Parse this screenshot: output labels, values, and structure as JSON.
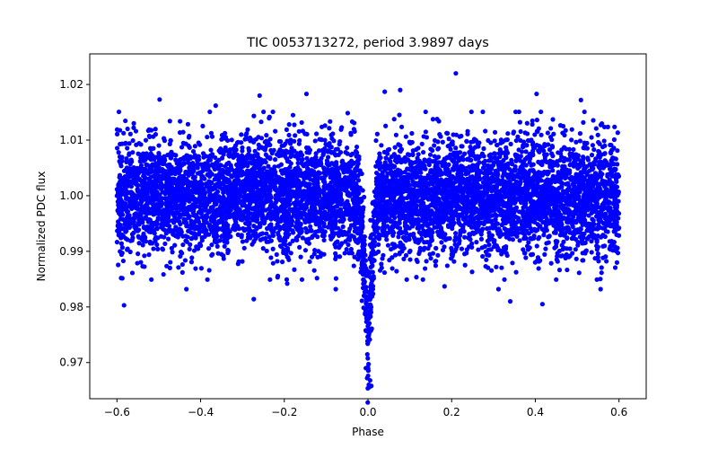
{
  "chart_data": {
    "type": "scatter",
    "title": "TIC 0053713272, period 3.9897 days",
    "xlabel": "Phase",
    "ylabel": "Normalized PDC flux",
    "xlim": [
      -0.665,
      0.665
    ],
    "ylim": [
      0.9635,
      1.0255
    ],
    "xticks": [
      -0.6,
      -0.4,
      -0.2,
      0.0,
      0.2,
      0.4,
      0.6
    ],
    "xtick_labels": [
      "−0.6",
      "−0.4",
      "−0.2",
      "0.0",
      "0.2",
      "0.4",
      "0.6"
    ],
    "yticks": [
      0.97,
      0.98,
      0.99,
      1.0,
      1.01,
      1.02
    ],
    "ytick_labels": [
      "0.97",
      "0.98",
      "0.99",
      "1.00",
      "1.01",
      "1.02"
    ],
    "grid": false,
    "marker_color": "#0000ff",
    "series": [
      {
        "name": "PDC flux",
        "model": {
          "phase_range": [
            -0.6,
            0.6
          ],
          "n_points": 7000,
          "baseline": 1.0,
          "scatter_sigma": 0.0052,
          "transit_center": 0.0,
          "transit_depth": 0.026,
          "transit_half_width": 0.022
        },
        "points": [
          {
            "x": -0.583,
            "y": 0.9803
          },
          {
            "x": -0.59,
            "y": 0.9852
          },
          {
            "x": -0.498,
            "y": 1.0173
          },
          {
            "x": -0.434,
            "y": 0.9832
          },
          {
            "x": -0.364,
            "y": 1.0162
          },
          {
            "x": -0.273,
            "y": 0.9814
          },
          {
            "x": -0.259,
            "y": 1.018
          },
          {
            "x": -0.193,
            "y": 0.9842
          },
          {
            "x": -0.147,
            "y": 1.0183
          },
          {
            "x": -0.077,
            "y": 0.9832
          },
          {
            "x": -0.005,
            "y": 0.969
          },
          {
            "x": -0.002,
            "y": 0.9672
          },
          {
            "x": 0.002,
            "y": 0.966
          },
          {
            "x": 0.005,
            "y": 0.9668
          },
          {
            "x": 0.008,
            "y": 0.9658
          },
          {
            "x": 0.04,
            "y": 1.0187
          },
          {
            "x": 0.077,
            "y": 1.019
          },
          {
            "x": 0.183,
            "y": 0.9837
          },
          {
            "x": 0.21,
            "y": 1.022
          },
          {
            "x": 0.312,
            "y": 0.9832
          },
          {
            "x": 0.34,
            "y": 0.981
          },
          {
            "x": 0.403,
            "y": 1.0183
          },
          {
            "x": 0.417,
            "y": 0.9805
          },
          {
            "x": 0.509,
            "y": 1.0172
          },
          {
            "x": 0.556,
            "y": 0.9832
          }
        ]
      }
    ]
  }
}
